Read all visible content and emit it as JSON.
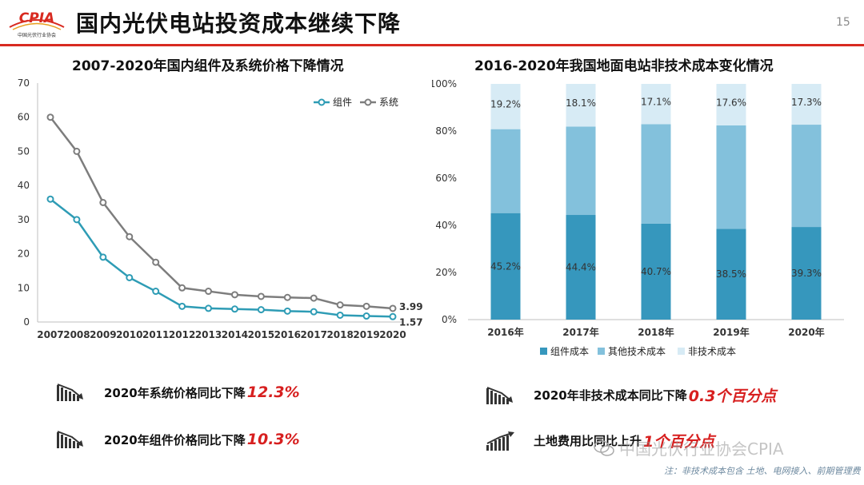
{
  "header": {
    "logo_text": "CPIA",
    "logo_subtext": "中国光伏行业协会",
    "title": "国内光伏电站投资成本继续下降",
    "page_number": "15"
  },
  "colors": {
    "accent_red": "#d82a20",
    "highlight_red": "#d71f1f",
    "teal": "#2e9cb5",
    "gray": "#7d7d7d",
    "bar_dark": "#3697bd",
    "bar_mid": "#83c1dc",
    "bar_light": "#d7ebf5"
  },
  "chart_data": [
    {
      "type": "line",
      "title": "2007-2020年国内组件及系统价格下降情况",
      "x": [
        "2007",
        "2008",
        "2009",
        "2010",
        "2011",
        "2012",
        "2013",
        "2014",
        "2015",
        "2016",
        "2017",
        "2018",
        "2019",
        "2020"
      ],
      "ylim": [
        0,
        70
      ],
      "yticks": [
        "0",
        "10",
        "20",
        "30",
        "40",
        "50",
        "60",
        "70"
      ],
      "legend_position": "top-right",
      "grid": false,
      "series": [
        {
          "name": "组件",
          "color": "#2e9cb5",
          "values": [
            36,
            30,
            19,
            13,
            9,
            4.6,
            4.0,
            3.8,
            3.6,
            3.2,
            3.0,
            2.0,
            1.75,
            1.57
          ]
        },
        {
          "name": "系统",
          "color": "#7d7d7d",
          "values": [
            60,
            50,
            35,
            25,
            17.5,
            10,
            9,
            8,
            7.5,
            7.2,
            7.0,
            5.0,
            4.6,
            3.99
          ]
        }
      ],
      "end_labels": [
        "3.99",
        "1.57"
      ]
    },
    {
      "type": "bar",
      "stacked": true,
      "percent": true,
      "title": "2016-2020年我国地面电站非技术成本变化情况",
      "categories": [
        "2016年",
        "2017年",
        "2018年",
        "2019年",
        "2020年"
      ],
      "ylim": [
        0,
        100
      ],
      "yticks": [
        "0%",
        "20%",
        "40%",
        "60%",
        "80%",
        "100%"
      ],
      "legend_position": "bottom",
      "series": [
        {
          "name": "组件成本",
          "color": "#3697bd",
          "values": [
            45.2,
            44.4,
            40.7,
            38.5,
            39.3
          ]
        },
        {
          "name": "其他技术成本",
          "color": "#83c1dc",
          "values": [
            35.6,
            37.5,
            42.2,
            43.9,
            43.4
          ]
        },
        {
          "name": "非技术成本",
          "color": "#d7ebf5",
          "values": [
            19.2,
            18.1,
            17.1,
            17.6,
            17.3
          ]
        }
      ],
      "data_labels_bottom": [
        "45.2%",
        "44.4%",
        "40.7%",
        "38.5%",
        "39.3%"
      ],
      "data_labels_top": [
        "19.2%",
        "18.1%",
        "17.1%",
        "17.6%",
        "17.3%"
      ]
    }
  ],
  "stats": [
    {
      "label": "2020年系统价格同比下降",
      "value": "12.3%",
      "icon": "downtrend-icon"
    },
    {
      "label": "2020年组件价格同比下降",
      "value": "10.3%",
      "icon": "downtrend-icon"
    },
    {
      "label": "2020年非技术成本同比下降",
      "value": "0.3个百分点",
      "icon": "downtrend-icon"
    },
    {
      "label": "土地费用比同比上升",
      "value": "1个百分点",
      "icon": "uptrend-icon"
    }
  ],
  "footnote": "注：非技术成本包含 土地、电网接入、前期管理费",
  "watermark": "中国光伏行业协会CPIA"
}
